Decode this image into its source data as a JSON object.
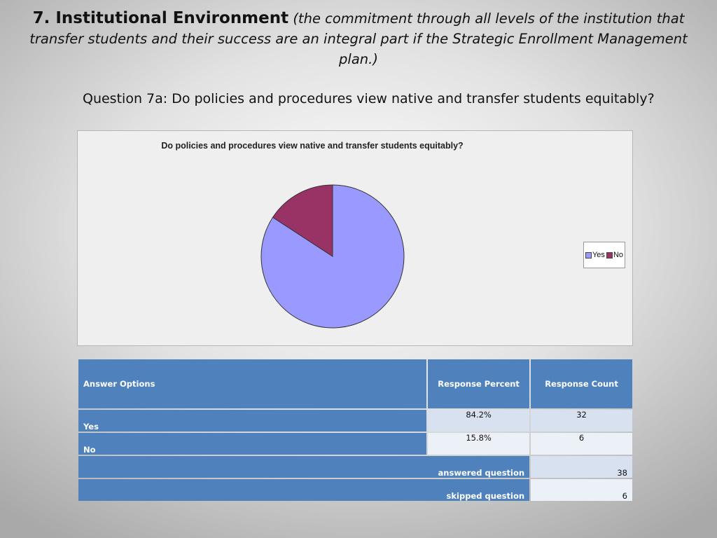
{
  "slide": {
    "heading_main": "7. Institutional Environment",
    "heading_sub": "(the commitment through all levels of the institution that transfer students and their success are an integral part if the Strategic Enrollment Management plan.)",
    "question": "Question 7a:  Do policies and procedures view native and transfer students equitably?"
  },
  "chart_data": {
    "type": "pie",
    "title": "Do policies and procedures view native and transfer students equitably?",
    "categories": [
      "Yes",
      "No"
    ],
    "values": [
      84.2,
      15.8
    ],
    "colors": [
      "#9999ff",
      "#993366"
    ],
    "legend_position": "right"
  },
  "table": {
    "headers": [
      "Answer Options",
      "Response Percent",
      "Response Count"
    ],
    "rows": [
      {
        "option": "Yes",
        "percent": "84.2%",
        "count": "32"
      },
      {
        "option": "No",
        "percent": "15.8%",
        "count": "6"
      }
    ],
    "answered_label": "answered question",
    "answered_count": "38",
    "skipped_label": "skipped question",
    "skipped_count": "6"
  }
}
